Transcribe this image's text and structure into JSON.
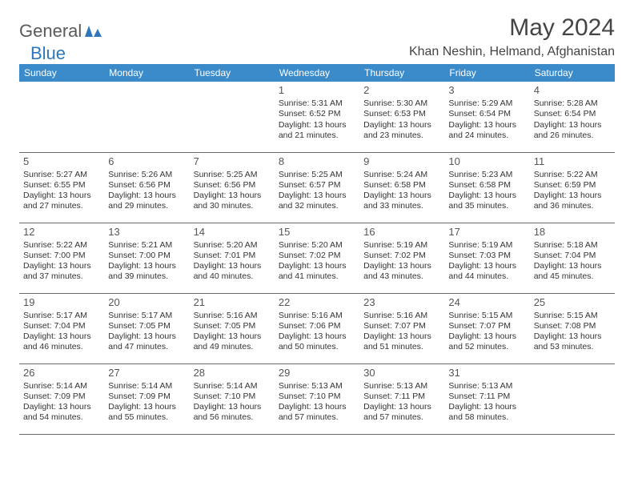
{
  "brand": {
    "part1": "General",
    "part2": "Blue"
  },
  "title": "May 2024",
  "location": "Khan Neshin, Helmand, Afghanistan",
  "colors": {
    "header_bg": "#3b8bca",
    "header_text": "#ffffff",
    "text": "#333333",
    "brand_gray": "#5a5a5a",
    "brand_blue": "#2f77bb",
    "border": "#6a6a6a",
    "bg": "#ffffff"
  },
  "days": [
    "Sunday",
    "Monday",
    "Tuesday",
    "Wednesday",
    "Thursday",
    "Friday",
    "Saturday"
  ],
  "weeks": [
    [
      null,
      null,
      null,
      {
        "n": "1",
        "sunrise": "5:31 AM",
        "sunset": "6:52 PM",
        "dl1": "Daylight: 13 hours",
        "dl2": "and 21 minutes."
      },
      {
        "n": "2",
        "sunrise": "5:30 AM",
        "sunset": "6:53 PM",
        "dl1": "Daylight: 13 hours",
        "dl2": "and 23 minutes."
      },
      {
        "n": "3",
        "sunrise": "5:29 AM",
        "sunset": "6:54 PM",
        "dl1": "Daylight: 13 hours",
        "dl2": "and 24 minutes."
      },
      {
        "n": "4",
        "sunrise": "5:28 AM",
        "sunset": "6:54 PM",
        "dl1": "Daylight: 13 hours",
        "dl2": "and 26 minutes."
      }
    ],
    [
      {
        "n": "5",
        "sunrise": "5:27 AM",
        "sunset": "6:55 PM",
        "dl1": "Daylight: 13 hours",
        "dl2": "and 27 minutes."
      },
      {
        "n": "6",
        "sunrise": "5:26 AM",
        "sunset": "6:56 PM",
        "dl1": "Daylight: 13 hours",
        "dl2": "and 29 minutes."
      },
      {
        "n": "7",
        "sunrise": "5:25 AM",
        "sunset": "6:56 PM",
        "dl1": "Daylight: 13 hours",
        "dl2": "and 30 minutes."
      },
      {
        "n": "8",
        "sunrise": "5:25 AM",
        "sunset": "6:57 PM",
        "dl1": "Daylight: 13 hours",
        "dl2": "and 32 minutes."
      },
      {
        "n": "9",
        "sunrise": "5:24 AM",
        "sunset": "6:58 PM",
        "dl1": "Daylight: 13 hours",
        "dl2": "and 33 minutes."
      },
      {
        "n": "10",
        "sunrise": "5:23 AM",
        "sunset": "6:58 PM",
        "dl1": "Daylight: 13 hours",
        "dl2": "and 35 minutes."
      },
      {
        "n": "11",
        "sunrise": "5:22 AM",
        "sunset": "6:59 PM",
        "dl1": "Daylight: 13 hours",
        "dl2": "and 36 minutes."
      }
    ],
    [
      {
        "n": "12",
        "sunrise": "5:22 AM",
        "sunset": "7:00 PM",
        "dl1": "Daylight: 13 hours",
        "dl2": "and 37 minutes."
      },
      {
        "n": "13",
        "sunrise": "5:21 AM",
        "sunset": "7:00 PM",
        "dl1": "Daylight: 13 hours",
        "dl2": "and 39 minutes."
      },
      {
        "n": "14",
        "sunrise": "5:20 AM",
        "sunset": "7:01 PM",
        "dl1": "Daylight: 13 hours",
        "dl2": "and 40 minutes."
      },
      {
        "n": "15",
        "sunrise": "5:20 AM",
        "sunset": "7:02 PM",
        "dl1": "Daylight: 13 hours",
        "dl2": "and 41 minutes."
      },
      {
        "n": "16",
        "sunrise": "5:19 AM",
        "sunset": "7:02 PM",
        "dl1": "Daylight: 13 hours",
        "dl2": "and 43 minutes."
      },
      {
        "n": "17",
        "sunrise": "5:19 AM",
        "sunset": "7:03 PM",
        "dl1": "Daylight: 13 hours",
        "dl2": "and 44 minutes."
      },
      {
        "n": "18",
        "sunrise": "5:18 AM",
        "sunset": "7:04 PM",
        "dl1": "Daylight: 13 hours",
        "dl2": "and 45 minutes."
      }
    ],
    [
      {
        "n": "19",
        "sunrise": "5:17 AM",
        "sunset": "7:04 PM",
        "dl1": "Daylight: 13 hours",
        "dl2": "and 46 minutes."
      },
      {
        "n": "20",
        "sunrise": "5:17 AM",
        "sunset": "7:05 PM",
        "dl1": "Daylight: 13 hours",
        "dl2": "and 47 minutes."
      },
      {
        "n": "21",
        "sunrise": "5:16 AM",
        "sunset": "7:05 PM",
        "dl1": "Daylight: 13 hours",
        "dl2": "and 49 minutes."
      },
      {
        "n": "22",
        "sunrise": "5:16 AM",
        "sunset": "7:06 PM",
        "dl1": "Daylight: 13 hours",
        "dl2": "and 50 minutes."
      },
      {
        "n": "23",
        "sunrise": "5:16 AM",
        "sunset": "7:07 PM",
        "dl1": "Daylight: 13 hours",
        "dl2": "and 51 minutes."
      },
      {
        "n": "24",
        "sunrise": "5:15 AM",
        "sunset": "7:07 PM",
        "dl1": "Daylight: 13 hours",
        "dl2": "and 52 minutes."
      },
      {
        "n": "25",
        "sunrise": "5:15 AM",
        "sunset": "7:08 PM",
        "dl1": "Daylight: 13 hours",
        "dl2": "and 53 minutes."
      }
    ],
    [
      {
        "n": "26",
        "sunrise": "5:14 AM",
        "sunset": "7:09 PM",
        "dl1": "Daylight: 13 hours",
        "dl2": "and 54 minutes."
      },
      {
        "n": "27",
        "sunrise": "5:14 AM",
        "sunset": "7:09 PM",
        "dl1": "Daylight: 13 hours",
        "dl2": "and 55 minutes."
      },
      {
        "n": "28",
        "sunrise": "5:14 AM",
        "sunset": "7:10 PM",
        "dl1": "Daylight: 13 hours",
        "dl2": "and 56 minutes."
      },
      {
        "n": "29",
        "sunrise": "5:13 AM",
        "sunset": "7:10 PM",
        "dl1": "Daylight: 13 hours",
        "dl2": "and 57 minutes."
      },
      {
        "n": "30",
        "sunrise": "5:13 AM",
        "sunset": "7:11 PM",
        "dl1": "Daylight: 13 hours",
        "dl2": "and 57 minutes."
      },
      {
        "n": "31",
        "sunrise": "5:13 AM",
        "sunset": "7:11 PM",
        "dl1": "Daylight: 13 hours",
        "dl2": "and 58 minutes."
      },
      null
    ]
  ],
  "labels": {
    "sunrise": "Sunrise: ",
    "sunset": "Sunset: "
  }
}
